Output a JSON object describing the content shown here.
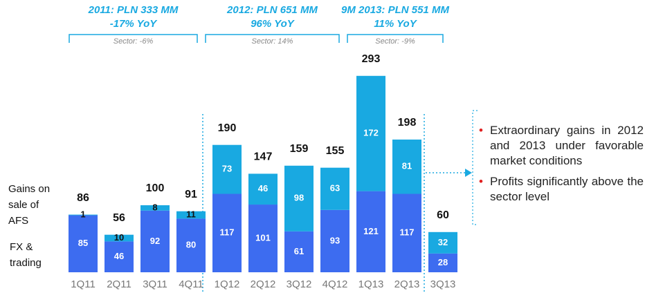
{
  "chart_data": {
    "type": "stacked-bar",
    "categories": [
      "1Q11",
      "2Q11",
      "3Q11",
      "4Q11",
      "1Q12",
      "2Q12",
      "3Q12",
      "4Q12",
      "1Q13",
      "2Q13",
      "3Q13"
    ],
    "series": [
      {
        "name": "FX & trading",
        "color": "#3d6cf0",
        "values": [
          85,
          46,
          92,
          80,
          117,
          101,
          61,
          93,
          121,
          117,
          28
        ]
      },
      {
        "name": "Gains on sale of AFS",
        "color": "#19a9e1",
        "values": [
          1,
          10,
          8,
          11,
          73,
          46,
          98,
          63,
          172,
          81,
          32
        ]
      }
    ],
    "totals": [
      86,
      56,
      100,
      91,
      190,
      147,
      159,
      155,
      293,
      198,
      60
    ],
    "groups": [
      {
        "title": "2011: PLN 333 MM",
        "change": "-17% YoY",
        "sector": "Sector: -6%"
      },
      {
        "title": "2012: PLN 651 MM",
        "change": "96% YoY",
        "sector": "Sector: 14%"
      },
      {
        "title": "9M 2013: PLN 551 MM",
        "change": "11% YoY",
        "sector": "Sector: -9%"
      }
    ],
    "notes": [
      "Extraordinary gains in 2012 and 2013 under favorable market conditions",
      "Profits significantly above the sector level"
    ]
  }
}
